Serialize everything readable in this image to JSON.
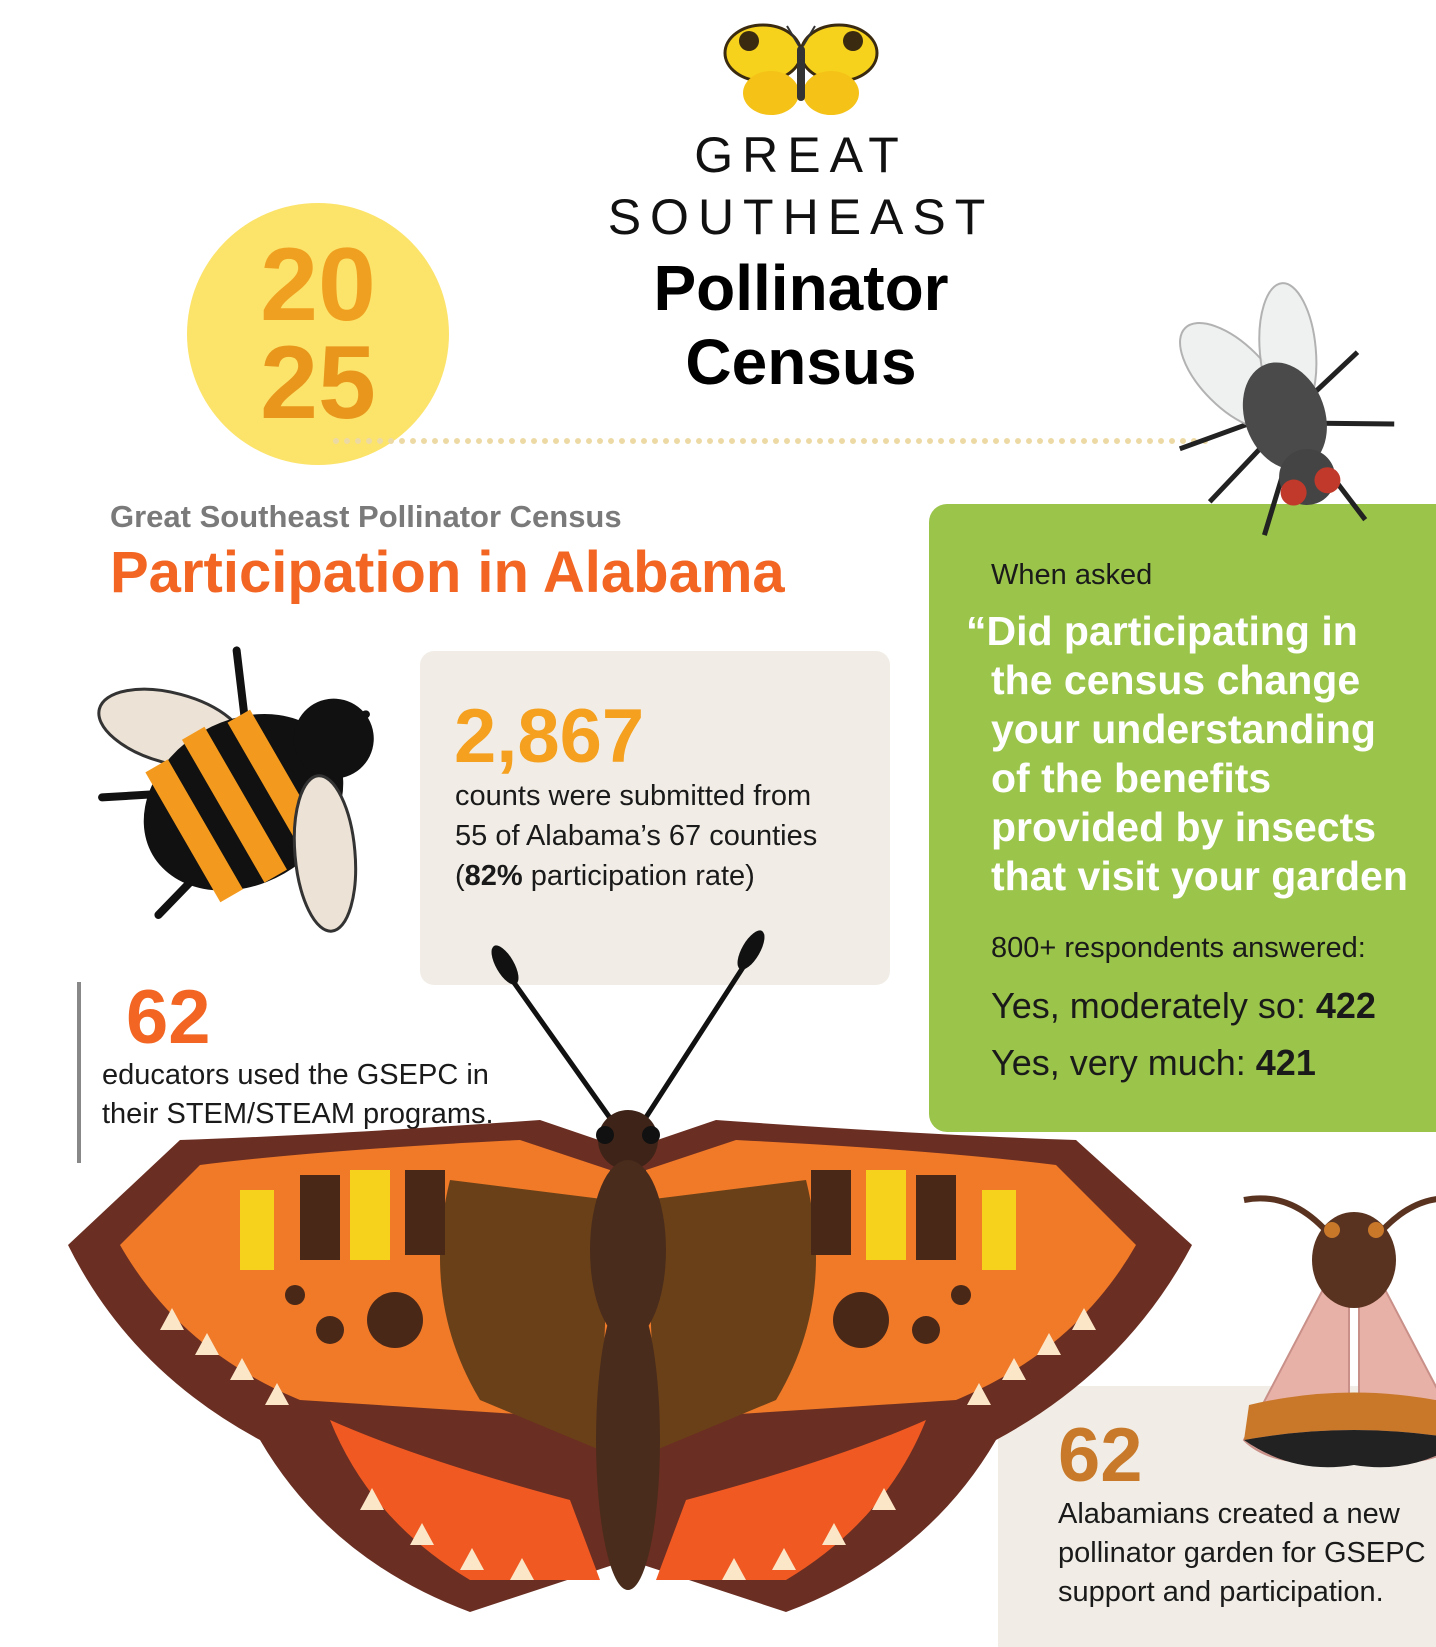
{
  "logo": {
    "line1": "GREAT",
    "line2": "SOUTHEAST",
    "line3": "Pollinator",
    "line4": "Census"
  },
  "year": {
    "top": "20",
    "bottom": "25"
  },
  "header": {
    "subtitle": "Great Southeast Pollinator Census",
    "title": "Participation in Alabama"
  },
  "counts": {
    "number": "2,867",
    "line1": "counts were submitted from",
    "line2": "55 of Alabama’s 67 counties",
    "line3_open": "(",
    "line3_bold": "82%",
    "line3_rest": " participation rate)"
  },
  "educators": {
    "number": "62",
    "line1": "educators used the GSEPC in",
    "line2": "their STEM/STEAM programs."
  },
  "survey": {
    "intro": "When asked",
    "question": [
      "“Did participating in",
      "the census change",
      "your understanding",
      "of the benefits",
      "provided by insects",
      "that visit your garden"
    ],
    "respondents": "800+ respondents answered:",
    "answers": [
      {
        "label": "Yes, moderately so: ",
        "count": "422"
      },
      {
        "label": "Yes, very much: ",
        "count": "421"
      }
    ]
  },
  "gardens": {
    "number": "62",
    "line1": "Alabamians created a new",
    "line2": "pollinator garden for GSEPC",
    "line3": "support and participation."
  }
}
